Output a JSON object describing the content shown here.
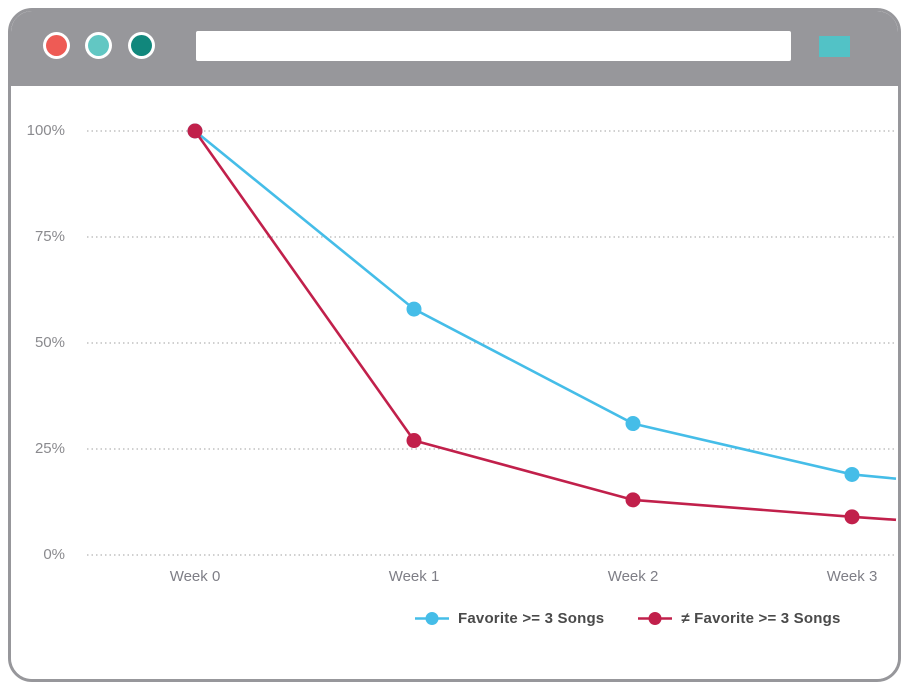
{
  "window": {
    "buttons": [
      {
        "name": "close",
        "color": "#ee5b55"
      },
      {
        "name": "minimize",
        "color": "#62c7c3"
      },
      {
        "name": "zoom",
        "color": "#11877c"
      }
    ],
    "address_bar": {
      "value": ""
    },
    "action_button": {
      "color": "#52c2c6"
    },
    "chrome_color": "#97979b"
  },
  "chart_data": {
    "type": "line",
    "title": "",
    "categories": [
      "Week 0",
      "Week 1",
      "Week 2",
      "Week 3"
    ],
    "series": [
      {
        "name": "Favorite >= 3 Songs",
        "color": "#45bde8",
        "values": [
          100,
          58,
          31,
          19
        ],
        "edge_value": 18
      },
      {
        "name": "≠ Favorite >= 3 Songs",
        "color": "#c1204b",
        "values": [
          100,
          27,
          13,
          9
        ],
        "edge_value": 8.3
      }
    ],
    "yticks": {
      "labels": [
        "100%",
        "75%",
        "50%",
        "25%",
        "0%"
      ],
      "values": [
        100,
        75,
        50,
        25,
        0
      ]
    },
    "ylim": [
      0,
      100
    ],
    "xlabel": "",
    "ylabel": "",
    "grid": "dotted-horizontal",
    "grid_color": "#b5b5b5",
    "axis_label_color": "#8a8a8e",
    "legend_text_color": "#4a4a4a",
    "legend_position": "bottom"
  }
}
